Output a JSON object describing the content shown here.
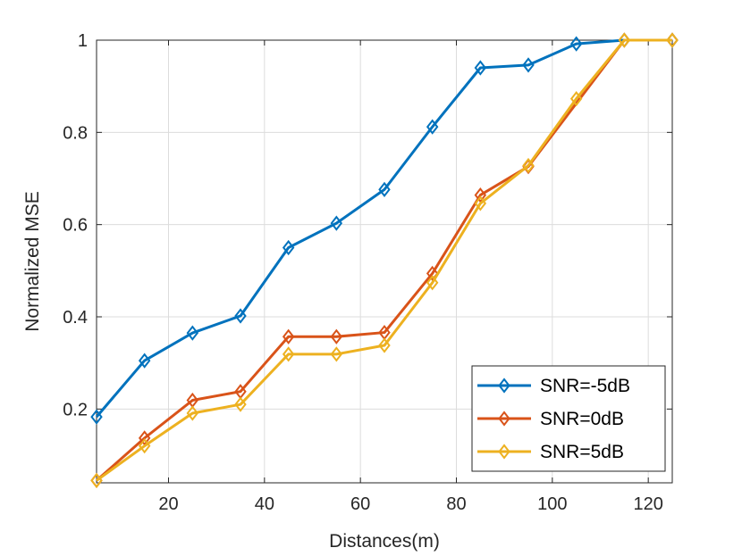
{
  "chart_data": {
    "type": "line",
    "title": "",
    "xlabel": "Distances(m)",
    "ylabel": "Normalized MSE",
    "xlim": [
      5,
      125
    ],
    "ylim": [
      0.04,
      1.0
    ],
    "xticks": [
      20,
      40,
      60,
      80,
      100,
      120
    ],
    "xtick_labels": [
      "20",
      "40",
      "60",
      "80",
      "100",
      "120"
    ],
    "yticks": [
      0.2,
      0.4,
      0.6,
      0.8,
      1.0
    ],
    "ytick_labels": [
      "0.2",
      "0.4",
      "0.6",
      "0.8",
      "1"
    ],
    "grid": true,
    "legend_position": "bottom-right",
    "x": [
      5,
      15,
      25,
      35,
      45,
      55,
      65,
      75,
      85,
      95,
      105,
      115,
      125
    ],
    "series": [
      {
        "name": "SNR=-5dB",
        "color": "#0072BD",
        "marker": "diamond",
        "values": [
          0.183,
          0.305,
          0.365,
          0.402,
          0.55,
          0.603,
          0.676,
          0.812,
          0.94,
          0.946,
          0.992,
          1.0,
          1.0
        ]
      },
      {
        "name": "SNR=0dB",
        "color": "#D95319",
        "marker": "diamond",
        "values": [
          0.045,
          0.137,
          0.219,
          0.238,
          0.357,
          0.357,
          0.366,
          0.494,
          0.664,
          0.726,
          null,
          1.0,
          1.0
        ]
      },
      {
        "name": "SNR=5dB",
        "color": "#EDB120",
        "marker": "diamond",
        "values": [
          0.045,
          0.12,
          0.191,
          0.21,
          0.319,
          0.319,
          0.338,
          0.474,
          0.646,
          0.728,
          0.873,
          1.0,
          1.0
        ]
      }
    ]
  }
}
